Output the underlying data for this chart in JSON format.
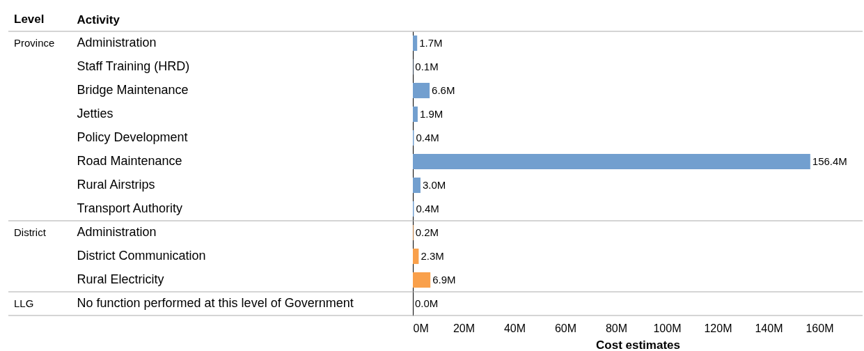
{
  "chart_data": {
    "type": "bar",
    "orientation": "horizontal",
    "xlabel": "Cost estimates",
    "ylabel": "Activity",
    "y2label": "Level",
    "categories": [
      "Administration",
      "Staff Training (HRD)",
      "Bridge Maintenance",
      "Jetties",
      "Policy Development",
      "Road Maintenance",
      "Rural Airstrips",
      "Transport Authority",
      "Administration",
      "District Communication",
      "Rural Electricity",
      "No function performed at this level of Government"
    ],
    "y2_categories": [
      "Province",
      null,
      null,
      null,
      null,
      null,
      null,
      null,
      "District",
      null,
      null,
      "LLG"
    ],
    "values": [
      1.7,
      0.1,
      6.6,
      1.9,
      0.4,
      156.4,
      3.0,
      0.4,
      0.2,
      2.3,
      6.9,
      0.0
    ],
    "value_labels": [
      "1.7M",
      "0.1M",
      "6.6M",
      "1.9M",
      "0.4M",
      "156.4M",
      "3.0M",
      "0.4M",
      "0.2M",
      "2.3M",
      "6.9M",
      "0.0M"
    ],
    "colors": [
      "#729fcf",
      "#729fcf",
      "#729fcf",
      "#729fcf",
      "#729fcf",
      "#729fcf",
      "#729fcf",
      "#729fcf",
      "#f9a04b",
      "#f9a04b",
      "#f9a04b",
      "#e15759"
    ],
    "xlim": [
      0,
      177
    ],
    "xticks": [
      {
        "value": 0,
        "label": "0M"
      },
      {
        "value": 20,
        "label": "20M"
      },
      {
        "value": 40,
        "label": "40M"
      },
      {
        "value": 60,
        "label": "60M"
      },
      {
        "value": 80,
        "label": "80M"
      },
      {
        "value": 100,
        "label": "100M"
      },
      {
        "value": 120,
        "label": "120M"
      },
      {
        "value": 140,
        "label": "140M"
      },
      {
        "value": 160,
        "label": "160M"
      }
    ],
    "grid": false
  }
}
